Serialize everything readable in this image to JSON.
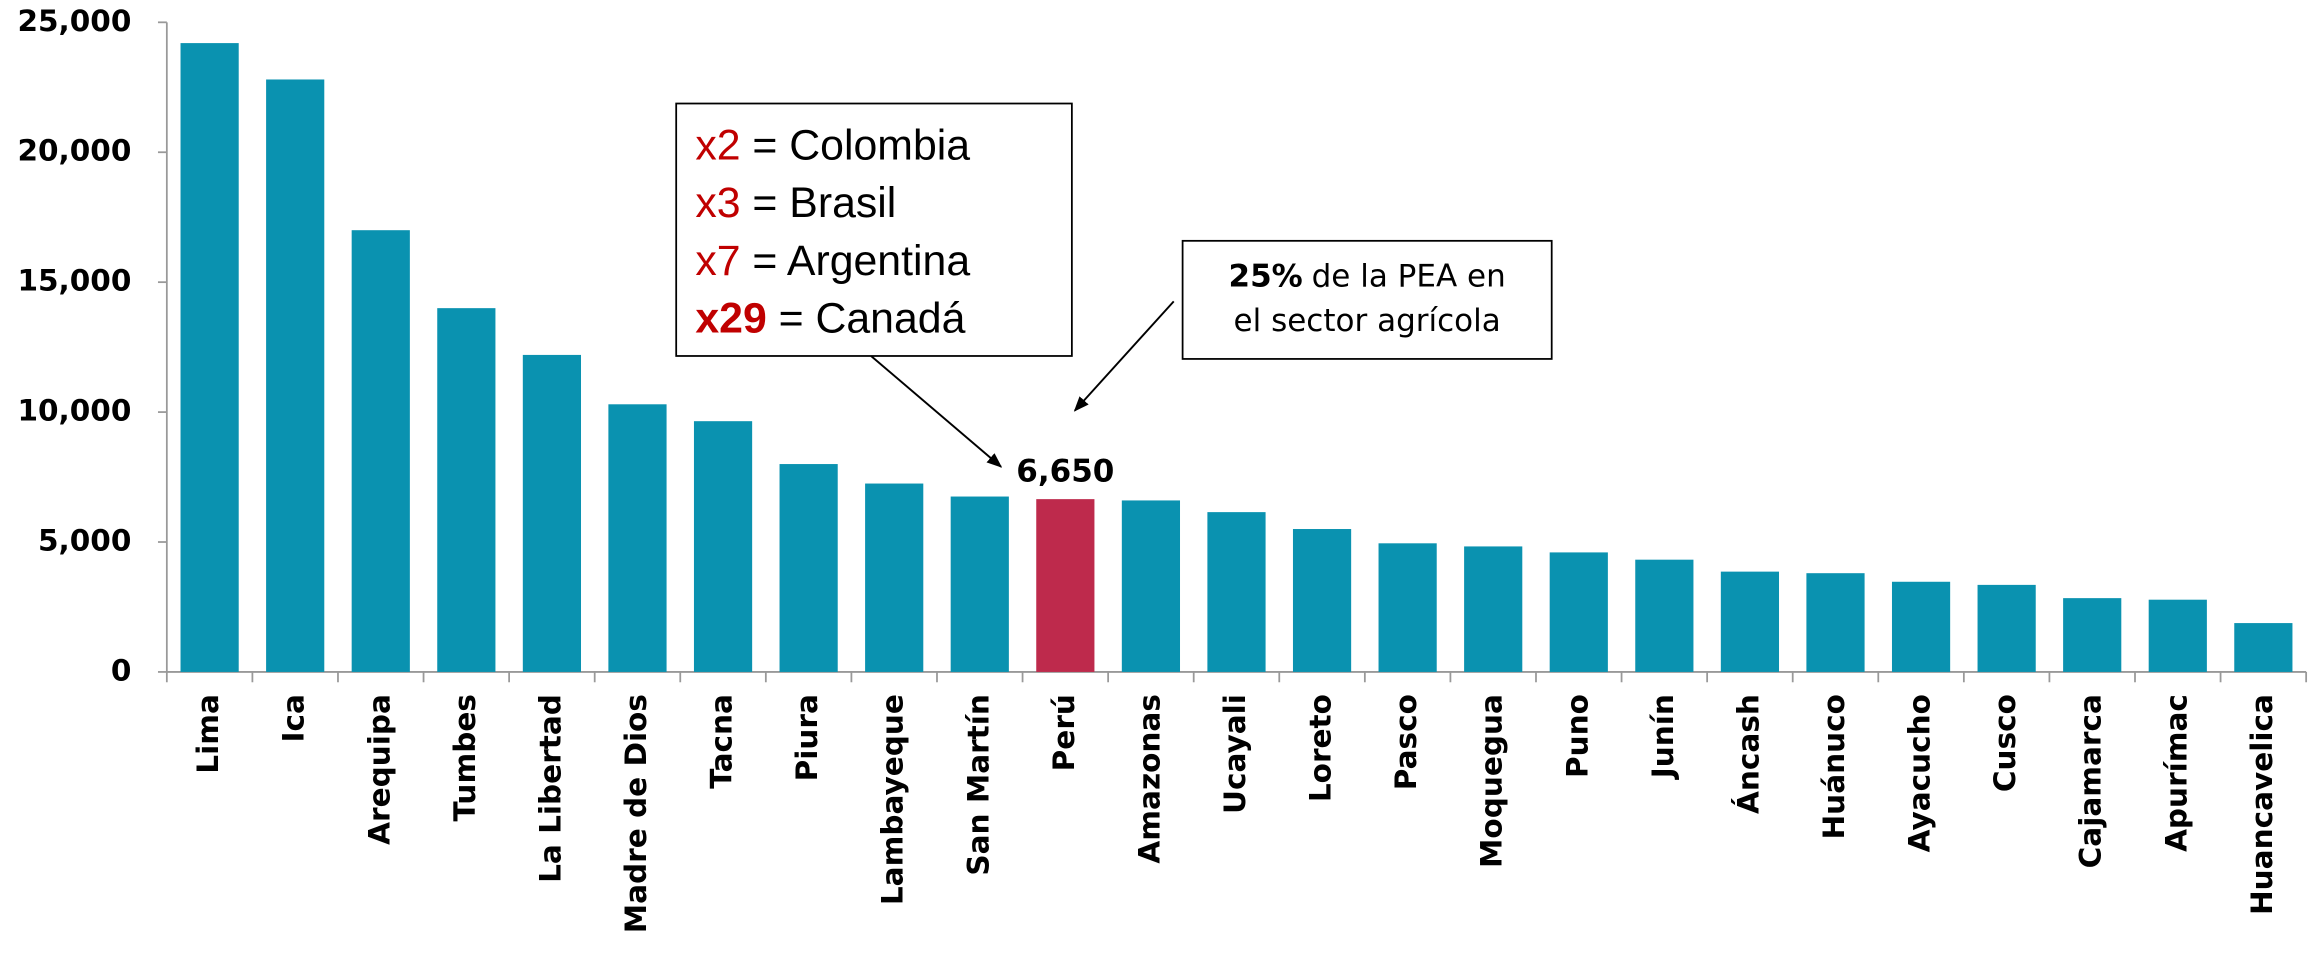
{
  "chart_data": {
    "type": "bar",
    "categories": [
      "Lima",
      "Ica",
      "Arequipa",
      "Tumbes",
      "La Libertad",
      "Madre de Dios",
      "Tacna",
      "Piura",
      "Lambayeque",
      "San Martín",
      "Perú",
      "Amazonas",
      "Ucayali",
      "Loreto",
      "Pasco",
      "Moquegua",
      "Puno",
      "Junín",
      "Áncash",
      "Huánuco",
      "Ayacucho",
      "Cusco",
      "Cajamarca",
      "Apurímac",
      "Huancavelica"
    ],
    "values": [
      24200,
      22800,
      17000,
      14000,
      12200,
      10300,
      9650,
      8000,
      7250,
      6750,
      6650,
      6600,
      6150,
      5500,
      4950,
      4830,
      4600,
      4320,
      3860,
      3800,
      3470,
      3350,
      2840,
      2780,
      1880
    ],
    "value_labels": [
      null,
      null,
      null,
      null,
      null,
      null,
      null,
      null,
      null,
      null,
      "6,650",
      null,
      null,
      null,
      null,
      null,
      null,
      null,
      null,
      null,
      null,
      null,
      null,
      null,
      null
    ],
    "colors": [
      "#0a92b0",
      "#0a92b0",
      "#0a92b0",
      "#0a92b0",
      "#0a92b0",
      "#0a92b0",
      "#0a92b0",
      "#0a92b0",
      "#0a92b0",
      "#0a92b0",
      "#be2a4c",
      "#0a92b0",
      "#0a92b0",
      "#0a92b0",
      "#0a92b0",
      "#0a92b0",
      "#0a92b0",
      "#0a92b0",
      "#0a92b0",
      "#0a92b0",
      "#0a92b0",
      "#0a92b0",
      "#0a92b0",
      "#0a92b0",
      "#0a92b0"
    ],
    "ylim": [
      0,
      25000
    ],
    "yticks": [
      {
        "value": 0,
        "label": "0"
      },
      {
        "value": 5000,
        "label": "5,000"
      },
      {
        "value": 10000,
        "label": "10,000"
      },
      {
        "value": 15000,
        "label": "15,000"
      },
      {
        "value": 20000,
        "label": "20,000"
      },
      {
        "value": 25000,
        "label": "25,000"
      }
    ],
    "grid": false,
    "annotations": [
      {
        "lines": [
          {
            "prefix": "x2",
            "text": "= Colombia"
          },
          {
            "prefix": "x3",
            "text": "= Brasil"
          },
          {
            "prefix": "x7",
            "text": "= Argentina"
          },
          {
            "prefix": "x29",
            "text": "= Canadá"
          }
        ]
      },
      {
        "lines": [
          {
            "prefix": "25%",
            "text": "de la PEA en"
          },
          {
            "prefix": null,
            "text": "el sector agrícola"
          }
        ]
      }
    ]
  }
}
